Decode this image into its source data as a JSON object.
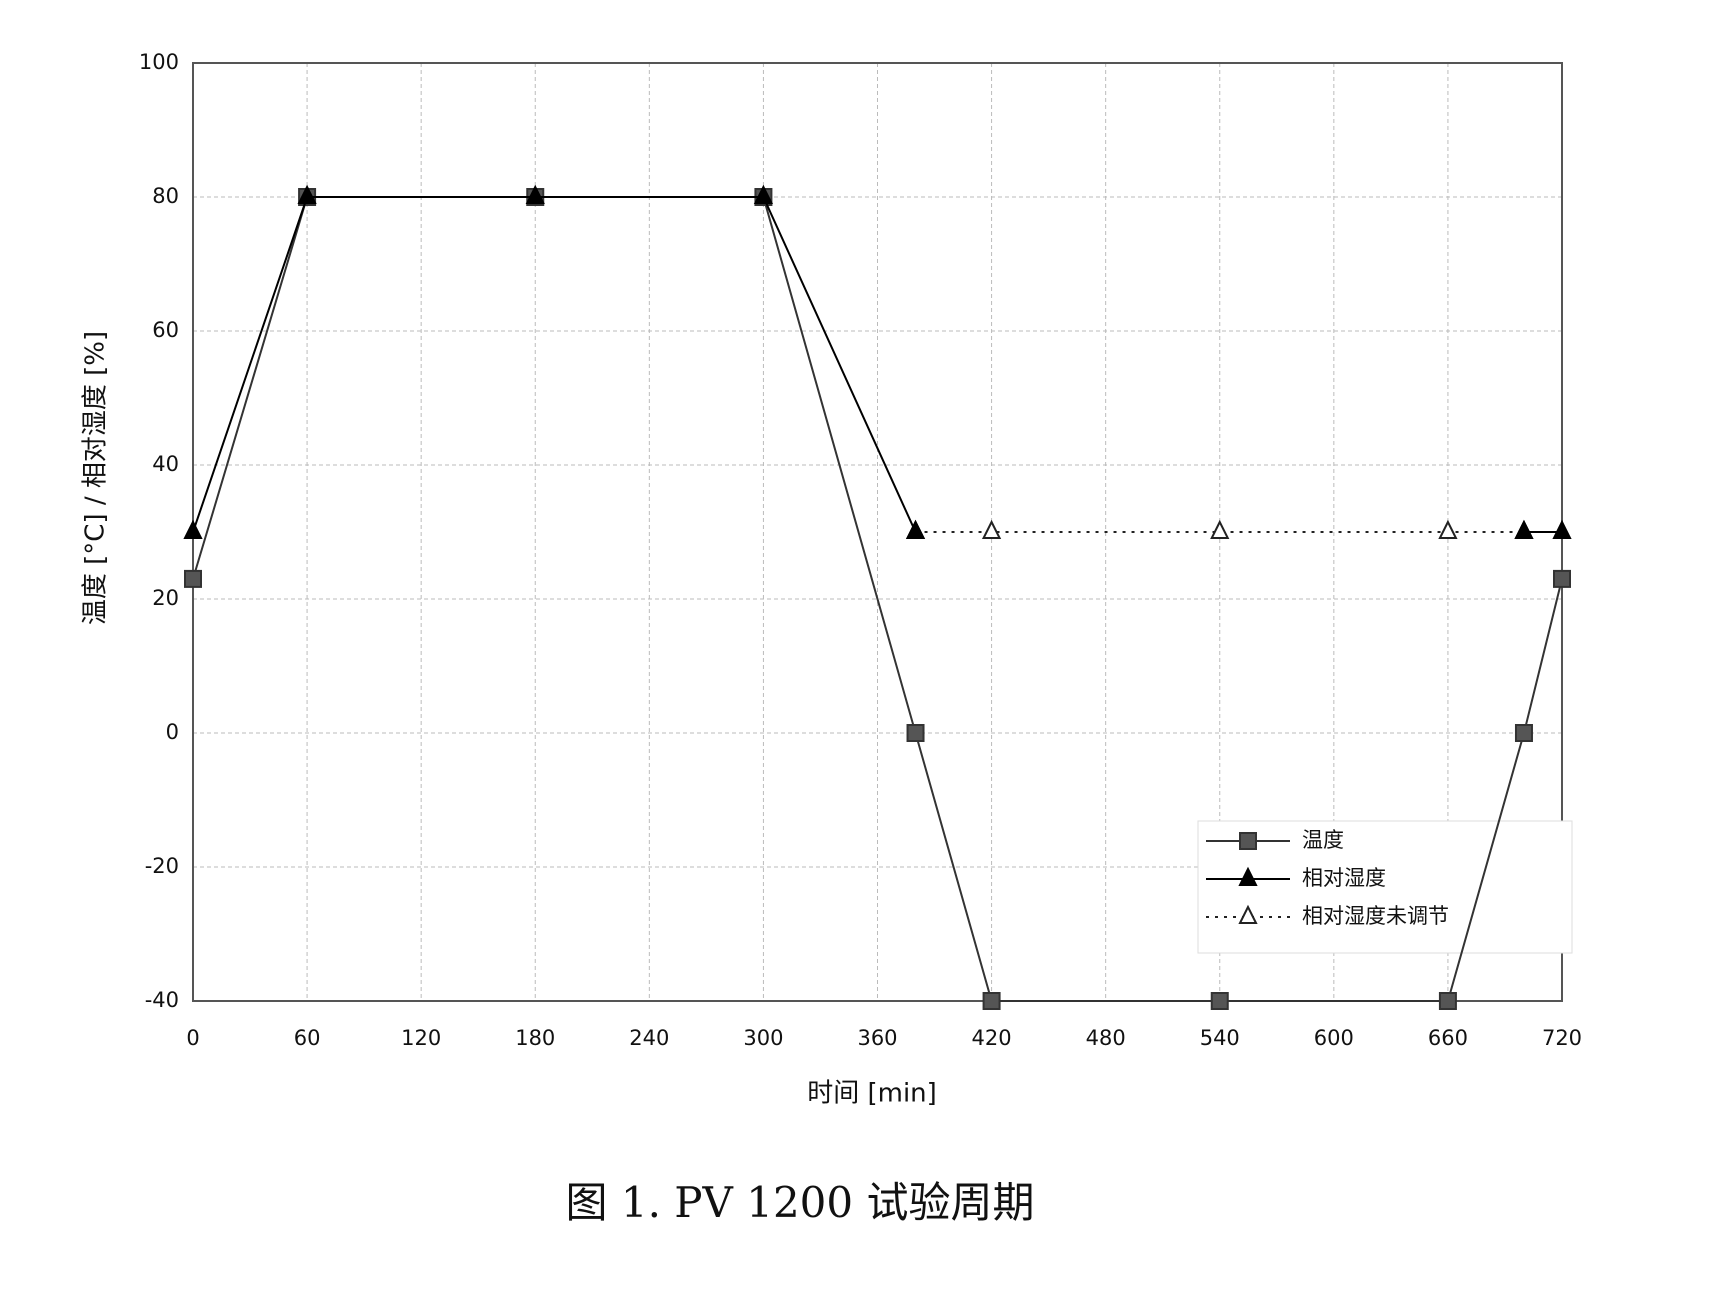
{
  "chart_data": {
    "type": "line",
    "y_label": "温度 [°C] / 相对湿度 [%]",
    "x_label": "时间 [min]",
    "caption": "图 1. PV 1200 试验周期",
    "x": [
      0,
      60,
      180,
      300,
      380,
      420,
      540,
      660,
      700,
      720
    ],
    "series": [
      {
        "name": "相对湿度未调节",
        "color": "#222222",
        "marker": "open-triangle",
        "line_style": "dotted",
        "values": [
          null,
          null,
          null,
          null,
          30,
          30,
          30,
          30,
          30,
          null
        ]
      },
      {
        "name": "温度",
        "color": "#333333",
        "marker": "square",
        "line_style": "solid",
        "values": [
          23,
          80,
          80,
          80,
          0,
          -40,
          -40,
          -40,
          0,
          23
        ]
      },
      {
        "name": "相对湿度",
        "color": "#000000",
        "marker": "triangle",
        "line_style": "solid",
        "values": [
          30,
          80,
          80,
          80,
          30,
          null,
          null,
          null,
          30,
          30
        ]
      }
    ],
    "legend_order": [
      1,
      2,
      0
    ],
    "xlim": [
      0,
      720
    ],
    "xticks": [
      0,
      60,
      120,
      180,
      240,
      300,
      360,
      420,
      480,
      540,
      600,
      660,
      720
    ],
    "ylim": [
      -40,
      100
    ],
    "yticks": [
      -40,
      -20,
      0,
      20,
      40,
      60,
      80,
      100
    ],
    "grid": true,
    "legend": "lower right"
  }
}
